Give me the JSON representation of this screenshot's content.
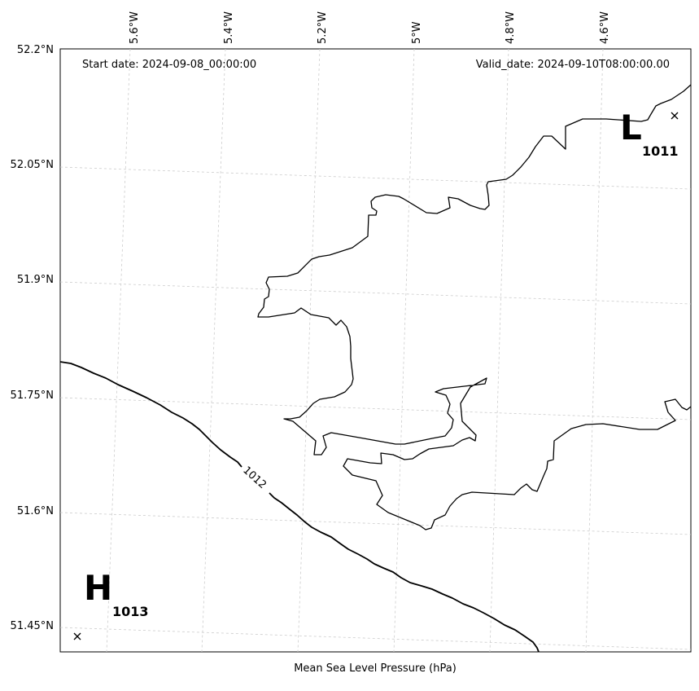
{
  "header": {
    "start_date": "Start date: 2024-09-08_00:00:00",
    "valid_date": "Valid_date: 2024-09-10T08:00:00.00"
  },
  "footer": {
    "xlabel": "Mean Sea Level Pressure (hPa)"
  },
  "axes": {
    "lon_labels": [
      "5.6°W",
      "5.4°W",
      "5.2°W",
      "5°W",
      "4.8°W",
      "4.6°W"
    ],
    "lat_labels": [
      "52.2°N",
      "52.05°N",
      "51.9°N",
      "51.75°N",
      "51.6°N",
      "51.45°N"
    ]
  },
  "pressure_centers": {
    "low": {
      "letter": "L",
      "value": "1011"
    },
    "high": {
      "letter": "H",
      "value": "1013"
    }
  },
  "isobars": [
    {
      "label": "1012"
    }
  ],
  "colors": {
    "coastline": "#000000",
    "isobar": "#000000",
    "gridline": "#cccccc"
  }
}
